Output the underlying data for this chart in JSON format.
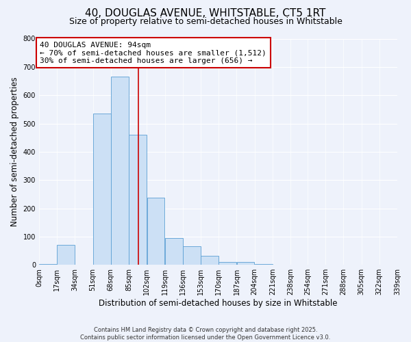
{
  "title": "40, DOUGLAS AVENUE, WHITSTABLE, CT5 1RT",
  "subtitle": "Size of property relative to semi-detached houses in Whitstable",
  "xlabel": "Distribution of semi-detached houses by size in Whitstable",
  "ylabel": "Number of semi-detached properties",
  "bin_edges": [
    0,
    17,
    34,
    51,
    68,
    85,
    102,
    119,
    136,
    153,
    170,
    187,
    204,
    221,
    238,
    254,
    271,
    288,
    305,
    322,
    339
  ],
  "bin_labels": [
    "0sqm",
    "17sqm",
    "34sqm",
    "51sqm",
    "68sqm",
    "85sqm",
    "102sqm",
    "119sqm",
    "136sqm",
    "153sqm",
    "170sqm",
    "187sqm",
    "204sqm",
    "221sqm",
    "238sqm",
    "254sqm",
    "271sqm",
    "288sqm",
    "305sqm",
    "322sqm",
    "339sqm"
  ],
  "bar_heights": [
    2,
    70,
    0,
    535,
    665,
    460,
    238,
    95,
    65,
    33,
    10,
    10,
    4,
    1,
    0,
    0,
    0,
    0,
    0,
    0
  ],
  "bar_color": "#cce0f5",
  "bar_edge_color": "#5a9fd4",
  "vline_x": 94,
  "vline_color": "#cc0000",
  "annotation_line1": "40 DOUGLAS AVENUE: 94sqm",
  "annotation_line2": "← 70% of semi-detached houses are smaller (1,512)",
  "annotation_line3": "30% of semi-detached houses are larger (656) →",
  "annotation_box_color": "white",
  "annotation_box_edge_color": "#cc0000",
  "ylim": [
    0,
    800
  ],
  "yticks": [
    0,
    100,
    200,
    300,
    400,
    500,
    600,
    700,
    800
  ],
  "background_color": "#eef2fb",
  "footer_line1": "Contains HM Land Registry data © Crown copyright and database right 2025.",
  "footer_line2": "Contains public sector information licensed under the Open Government Licence v3.0.",
  "title_fontsize": 11,
  "subtitle_fontsize": 9,
  "tick_label_fontsize": 7,
  "axis_label_fontsize": 8.5,
  "annotation_fontsize": 8
}
